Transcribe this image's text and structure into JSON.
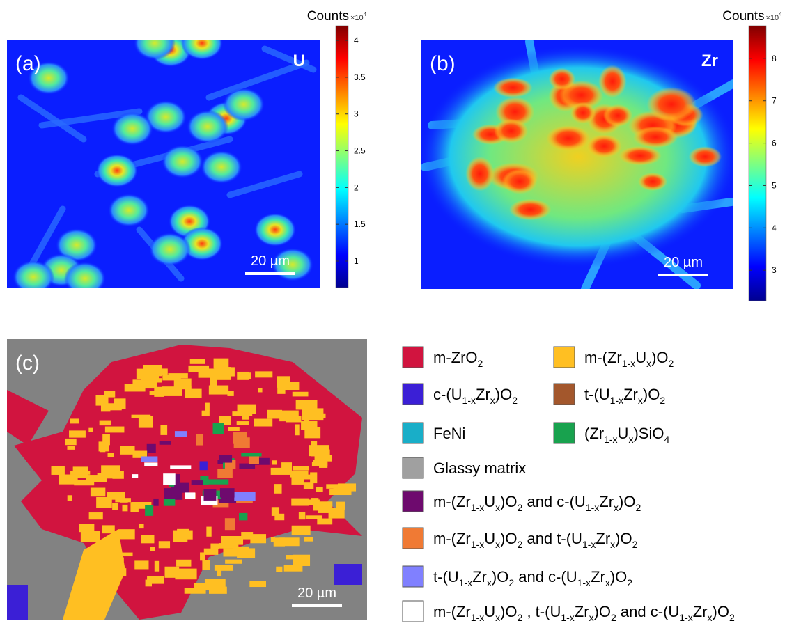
{
  "panels": [
    {
      "label": "(a)",
      "element": "U",
      "scale_bar": "20 µm",
      "colorbar": {
        "title": "Counts",
        "multiplier": [
          "×10",
          "4"
        ],
        "clim": [
          0.64,
          4.2
        ],
        "ticks": [
          1,
          1.5,
          2,
          2.5,
          3,
          3.5,
          4
        ]
      }
    },
    {
      "label": "(b)",
      "element": "Zr",
      "scale_bar": "20 µm",
      "colorbar": {
        "title": "Counts",
        "multiplier": [
          "×10",
          "4"
        ],
        "clim": [
          2.28,
          8.77
        ],
        "ticks": [
          3,
          4,
          5,
          6,
          7,
          8
        ]
      }
    },
    {
      "label": "(c)",
      "scale_bar": "20 µm"
    }
  ],
  "legend": [
    {
      "label": [
        "m-ZrO",
        "2"
      ],
      "color": "#d1143f"
    },
    {
      "label": [
        "m-(Zr",
        "1-x",
        "U",
        "x",
        ")O",
        "2"
      ],
      "color": "#ffbf22"
    },
    {
      "label": [
        "c-(U",
        "1-x",
        "Zr",
        "x",
        ")O",
        "2"
      ],
      "color": "#3b1fd6"
    },
    {
      "label": [
        "t-(U",
        "1-x",
        "Zr",
        "x",
        ")O",
        "2"
      ],
      "color": "#a3572c"
    },
    {
      "label": [
        "FeNi"
      ],
      "color": "#19aec8"
    },
    {
      "label": [
        "(Zr",
        "1-x",
        "U",
        "x",
        ")SiO",
        "4"
      ],
      "color": "#18a24e"
    },
    {
      "label": [
        "Glassy matrix"
      ],
      "color": "#a0a0a0"
    },
    {
      "label": [
        "m-(Zr",
        "1-x",
        "U",
        "x",
        ")O",
        "2",
        " and c-(U",
        "1-x",
        "Zr",
        "x",
        ")O",
        "2"
      ],
      "color": "#6e0a6e"
    },
    {
      "label": [
        "m-(Zr",
        "1-x",
        "U",
        "x",
        ")O",
        "2",
        " and t-(U",
        "1-x",
        "Zr",
        "x",
        ")O",
        "2"
      ],
      "color": "#f07a34"
    },
    {
      "label": [
        "t-(U",
        "1-x",
        "Zr",
        "x",
        ")O",
        "2",
        " and c-(U",
        "1-x",
        "Zr",
        "x",
        ")O",
        "2"
      ],
      "color": "#8080ff"
    },
    {
      "label": [
        "m-(Zr",
        "1-x",
        "U",
        "x",
        ")O",
        "2",
        " , t-(U",
        "1-x",
        "Zr",
        "x",
        ")O",
        "2",
        " and c-(U",
        "1-x",
        "Zr",
        "x",
        ")O",
        "2"
      ],
      "color": "#ffffff"
    }
  ]
}
